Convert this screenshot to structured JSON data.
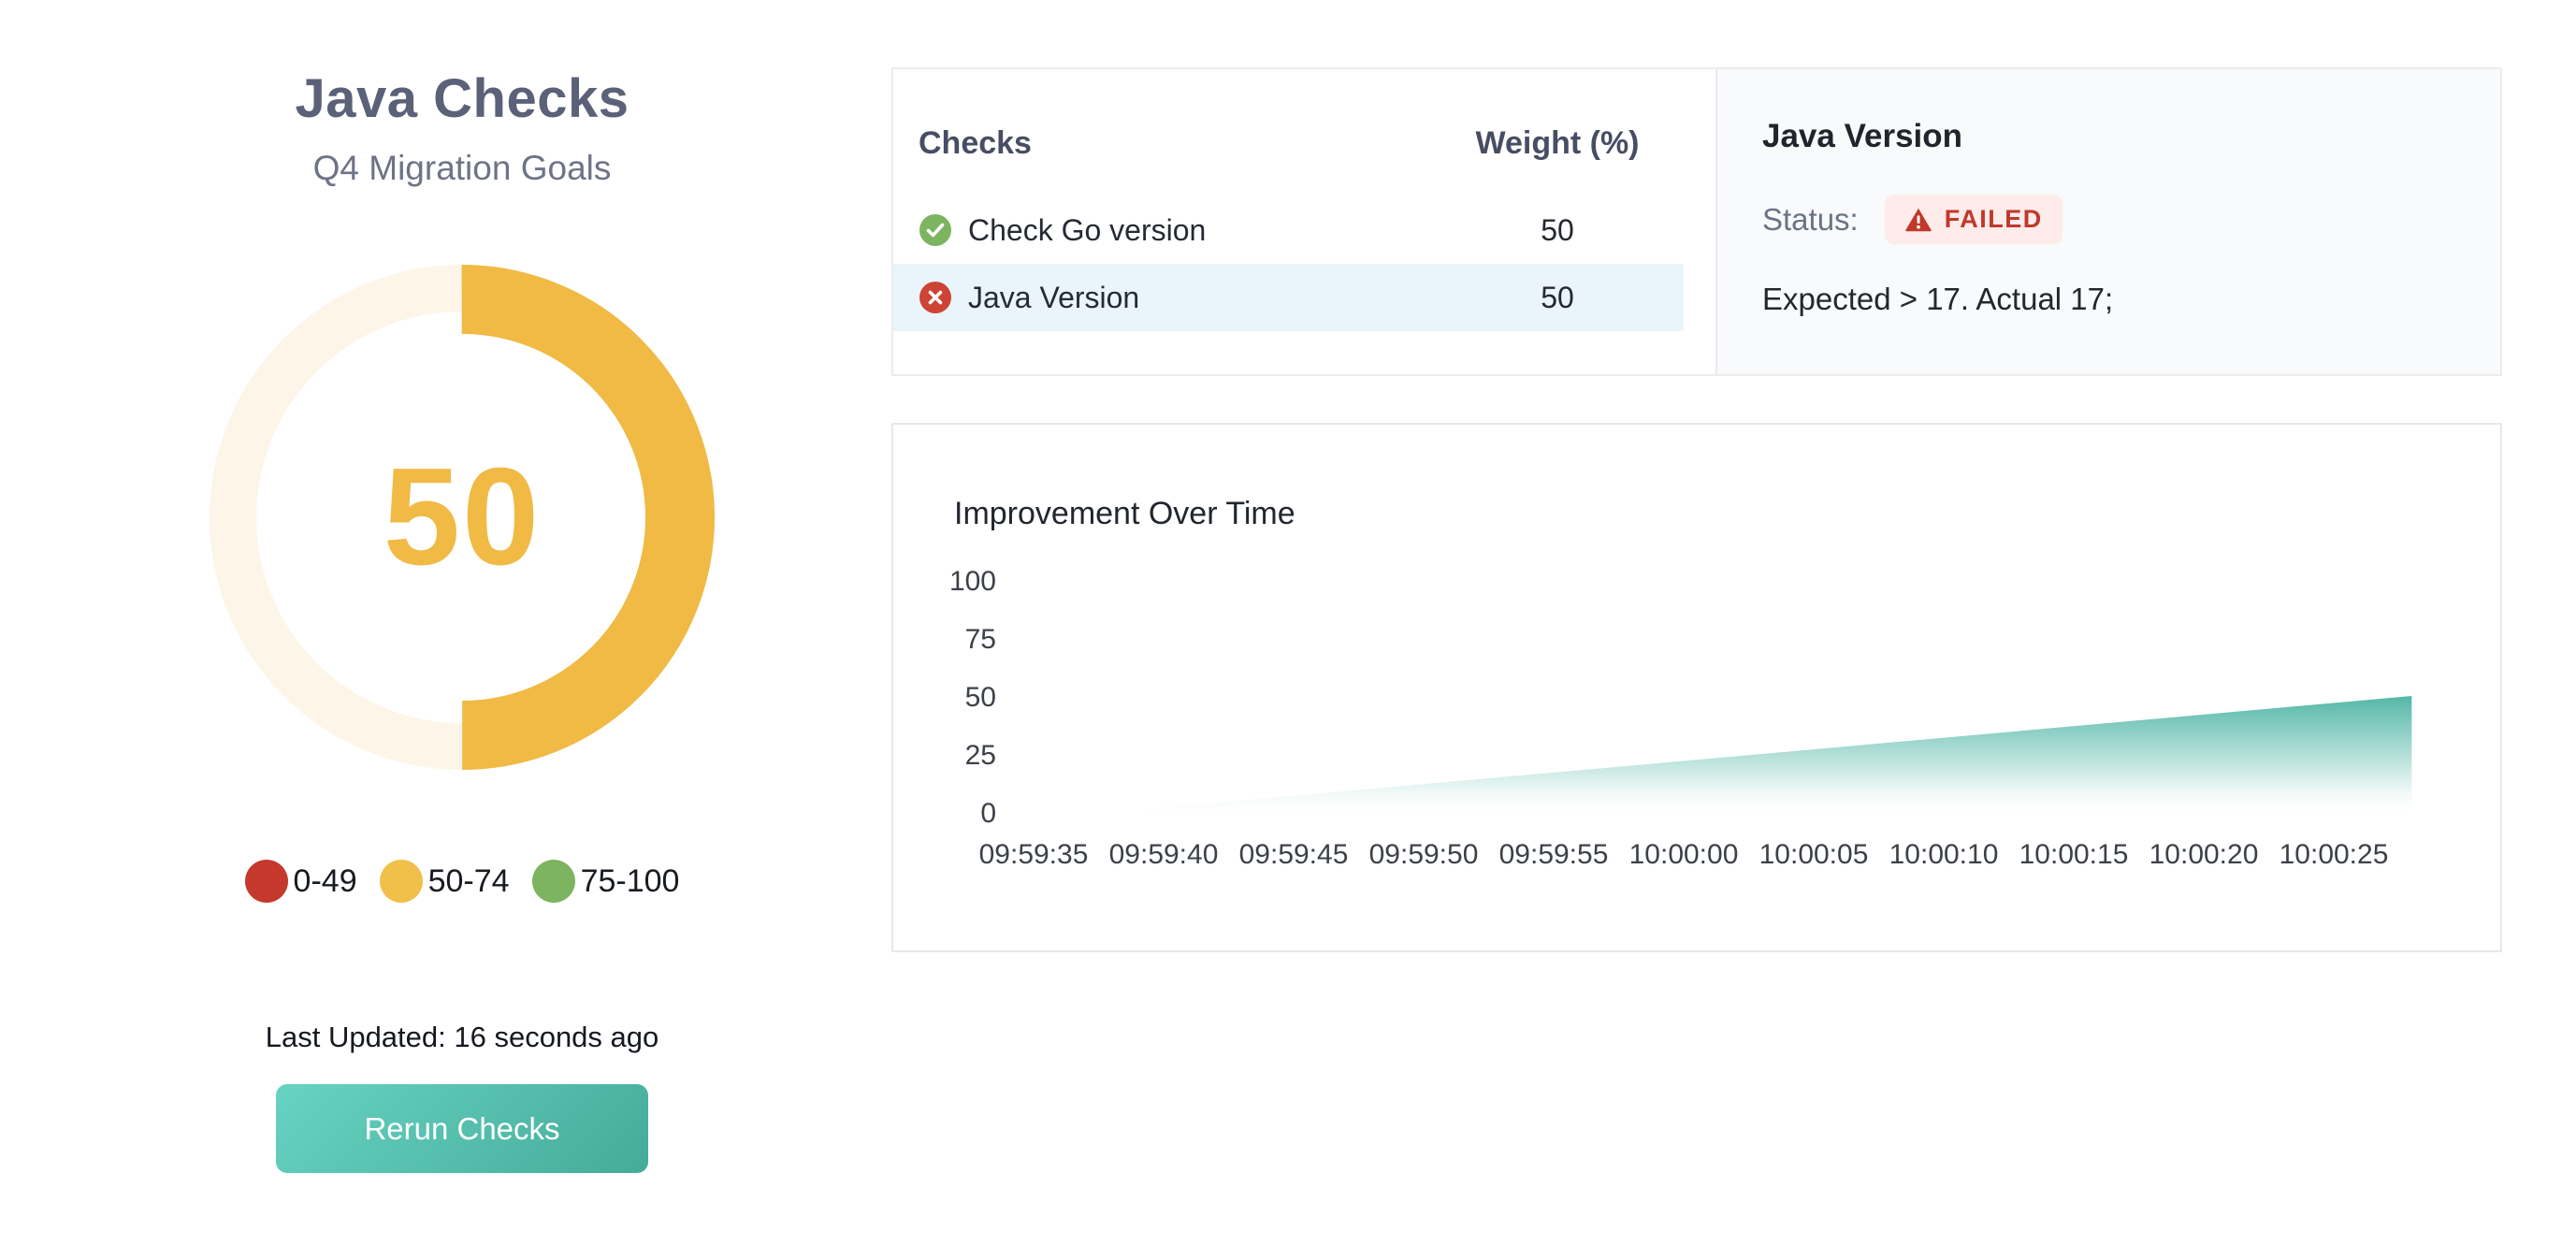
{
  "left_panel": {
    "title": "Java Checks",
    "subtitle": "Q4 Migration Goals",
    "gauge": {
      "value": 50,
      "max": 100,
      "score_text": "50",
      "color": "#f0ba45",
      "track_color": "#fdf5e8"
    },
    "legend": [
      {
        "label": "0-49",
        "color": "#c4392b"
      },
      {
        "label": "50-74",
        "color": "#f0c04a"
      },
      {
        "label": "75-100",
        "color": "#7cb45f"
      }
    ],
    "last_updated": "Last Updated: 16 seconds ago",
    "rerun_button_label": "Rerun Checks"
  },
  "checks_panel": {
    "header_checks": "Checks",
    "header_weight": "Weight (%)",
    "status_colors": {
      "passed": "#7cb45f",
      "failed": "#cd4434"
    },
    "selected_row_color": "#e9f5fa",
    "rows": [
      {
        "name": "Check Go version",
        "weight": "50",
        "status": "passed",
        "selected": false
      },
      {
        "name": "Java Version",
        "weight": "50",
        "status": "failed",
        "selected": true
      }
    ]
  },
  "detail_panel": {
    "title": "Java Version",
    "status_label": "Status:",
    "status_value": "FAILED",
    "status_color": "#c0392b",
    "badge_bg": "#fdece9",
    "message": "Expected > 17. Actual 17;"
  },
  "chart_data": {
    "type": "area",
    "title": "Improvement Over Time",
    "points": [
      {
        "time": "09:59:38",
        "value": 0
      },
      {
        "time": "10:00:28",
        "value": 50
      }
    ],
    "x_ticks": [
      "09:59:35",
      "09:59:40",
      "09:59:45",
      "09:59:50",
      "09:59:55",
      "10:00:00",
      "10:00:05",
      "10:00:10",
      "10:00:15",
      "10:00:20",
      "10:00:25"
    ],
    "x_tick_interval_s": 5,
    "y_ticks": [
      0,
      25,
      50,
      75,
      100
    ],
    "y_tick_interval": 25,
    "ylim": [
      0,
      100
    ],
    "area_color": "#45b1a0",
    "grid": false,
    "legend": "none"
  }
}
